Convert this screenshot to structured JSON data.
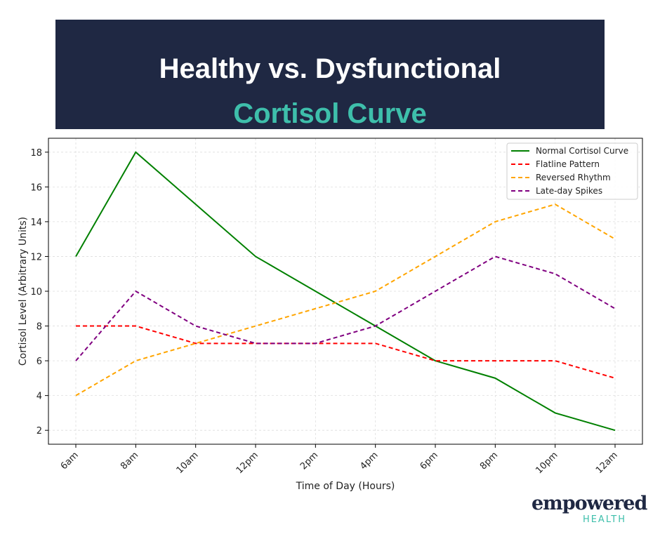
{
  "header": {
    "title_line1": "Healthy vs. Dysfunctional",
    "title_line2": "Cortisol Curve"
  },
  "colors": {
    "banner_bg": "#1f2843",
    "accent": "#3ebfab"
  },
  "logo": {
    "word": "empowered",
    "sub": "HEALTH"
  },
  "chart_data": {
    "type": "line",
    "title": "",
    "xlabel": "Time of Day (Hours)",
    "ylabel": "Cortisol Level (Arbitrary Units)",
    "categories": [
      "6am",
      "8am",
      "10am",
      "12pm",
      "2pm",
      "4pm",
      "6pm",
      "8pm",
      "10pm",
      "12am"
    ],
    "yticks": [
      2,
      4,
      6,
      8,
      10,
      12,
      14,
      16,
      18
    ],
    "ylim": [
      1.2,
      18.8
    ],
    "grid": true,
    "legend_position": "top-right",
    "series": [
      {
        "name": "Normal Cortisol Curve",
        "color": "#008000",
        "style": "solid",
        "values": [
          12,
          18,
          15,
          12,
          10,
          8,
          6,
          5,
          3,
          2
        ]
      },
      {
        "name": "Flatline Pattern",
        "color": "#ff0000",
        "style": "dashed",
        "values": [
          8,
          8,
          7,
          7,
          7,
          7,
          6,
          6,
          6,
          5
        ]
      },
      {
        "name": "Reversed Rhythm",
        "color": "#ffa500",
        "style": "dashed",
        "values": [
          4,
          6,
          7,
          8,
          9,
          10,
          12,
          14,
          15,
          13
        ]
      },
      {
        "name": "Late-day Spikes",
        "color": "#800080",
        "style": "dashed",
        "values": [
          6,
          10,
          8,
          7,
          7,
          8,
          10,
          12,
          11,
          9
        ]
      }
    ]
  }
}
